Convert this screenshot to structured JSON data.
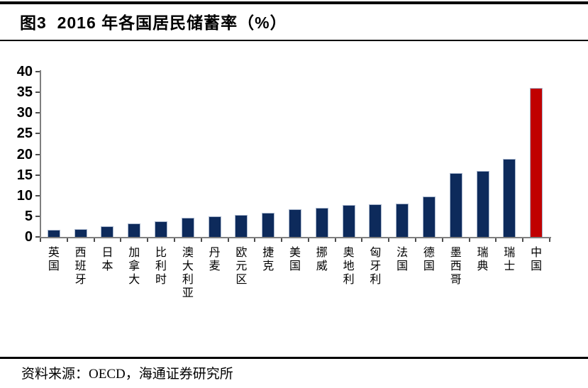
{
  "header": {
    "title": "图3  2016 年各国居民储蓄率（%）"
  },
  "footer": {
    "source": "资料来源：OECD，海通证券研究所"
  },
  "chart_data": {
    "type": "bar",
    "title": "2016 年各国居民储蓄率（%）",
    "categories": [
      "英国",
      "西班牙",
      "日本",
      "加拿大",
      "比利时",
      "澳大利亚",
      "丹麦",
      "欧元区",
      "捷克",
      "美国",
      "挪威",
      "奥地利",
      "匈牙利",
      "法国",
      "德国",
      "墨西哥",
      "瑞典",
      "瑞士",
      "中国"
    ],
    "values": [
      1.8,
      1.9,
      2.6,
      3.3,
      3.7,
      4.6,
      4.9,
      5.4,
      5.9,
      6.7,
      7.1,
      7.7,
      7.9,
      8.1,
      9.7,
      15.4,
      16.0,
      18.8,
      36.1
    ],
    "xlabel": "",
    "ylabel": "",
    "ylim": [
      0,
      40
    ],
    "yticks": [
      0,
      5,
      10,
      15,
      20,
      25,
      30,
      35,
      40
    ],
    "grid": false,
    "legend": "none",
    "bar_color": "#0D2A5B",
    "highlight_color": "#C00000",
    "highlight_index": 18,
    "highlight_category": "中国"
  },
  "colors": {
    "axis": "#7f7f7f",
    "tick": "#4d4d4d",
    "text": "#000000",
    "background": "#ffffff"
  }
}
